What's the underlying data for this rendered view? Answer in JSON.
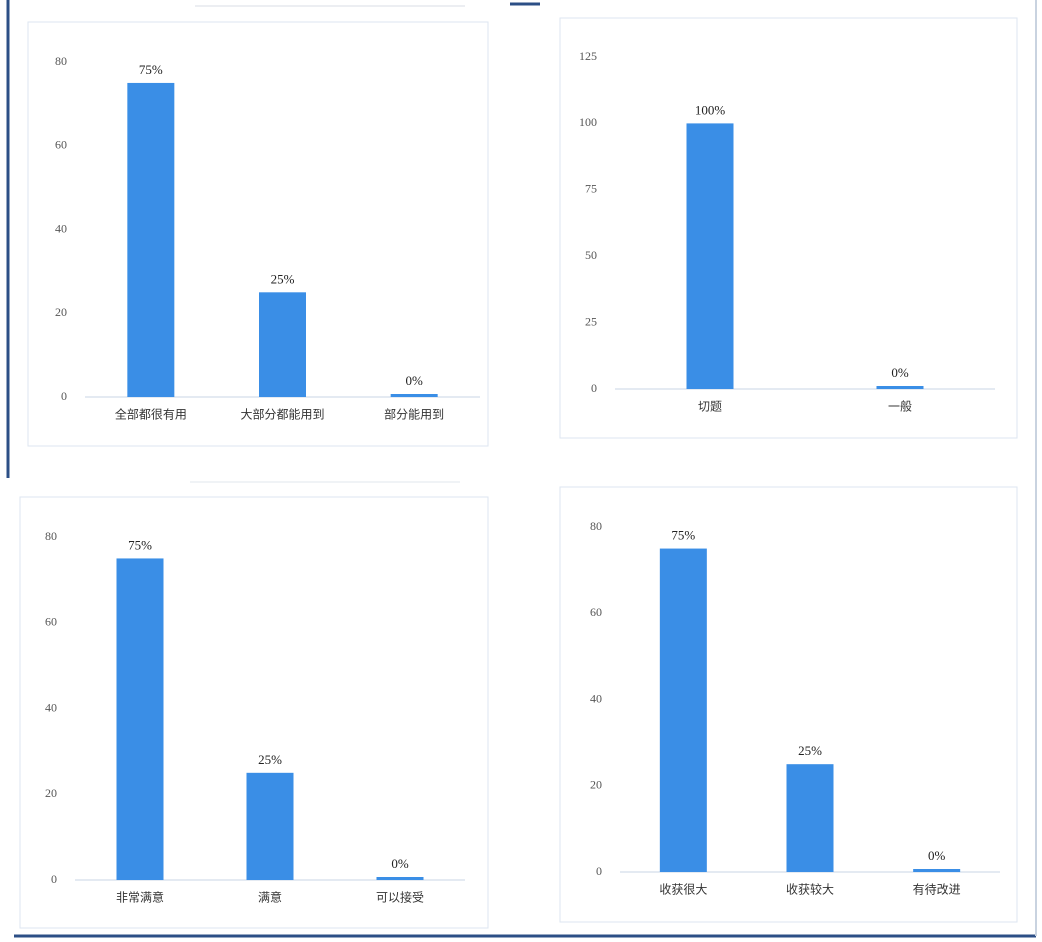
{
  "chart_data": [
    {
      "type": "bar",
      "categories": [
        "全部都很有用",
        "大部分都能用到",
        "部分能用到"
      ],
      "values": [
        75,
        25,
        0
      ],
      "value_labels": [
        "75%",
        "25%",
        "0%"
      ],
      "color": "#3a8ee6",
      "ylim": [
        0,
        80
      ],
      "yticks": [
        0,
        20,
        40,
        60,
        80
      ]
    },
    {
      "type": "bar",
      "categories": [
        "切题",
        "一般"
      ],
      "values": [
        100,
        0
      ],
      "value_labels": [
        "100%",
        "0%"
      ],
      "color": "#3a8ee6",
      "ylim": [
        0,
        125
      ],
      "yticks": [
        0,
        25,
        50,
        75,
        100,
        125
      ]
    },
    {
      "type": "bar",
      "categories": [
        "非常满意",
        "满意",
        "可以接受"
      ],
      "values": [
        75,
        25,
        0
      ],
      "value_labels": [
        "75%",
        "25%",
        "0%"
      ],
      "color": "#3a8ee6",
      "ylim": [
        0,
        80
      ],
      "yticks": [
        0,
        20,
        40,
        60,
        80
      ]
    },
    {
      "type": "bar",
      "categories": [
        "收获很大",
        "收获较大",
        "有待改进"
      ],
      "values": [
        75,
        25,
        0
      ],
      "value_labels": [
        "75%",
        "25%",
        "0%"
      ],
      "color": "#3a8ee6",
      "ylim": [
        0,
        80
      ],
      "yticks": [
        0,
        20,
        40,
        60,
        80
      ]
    }
  ]
}
